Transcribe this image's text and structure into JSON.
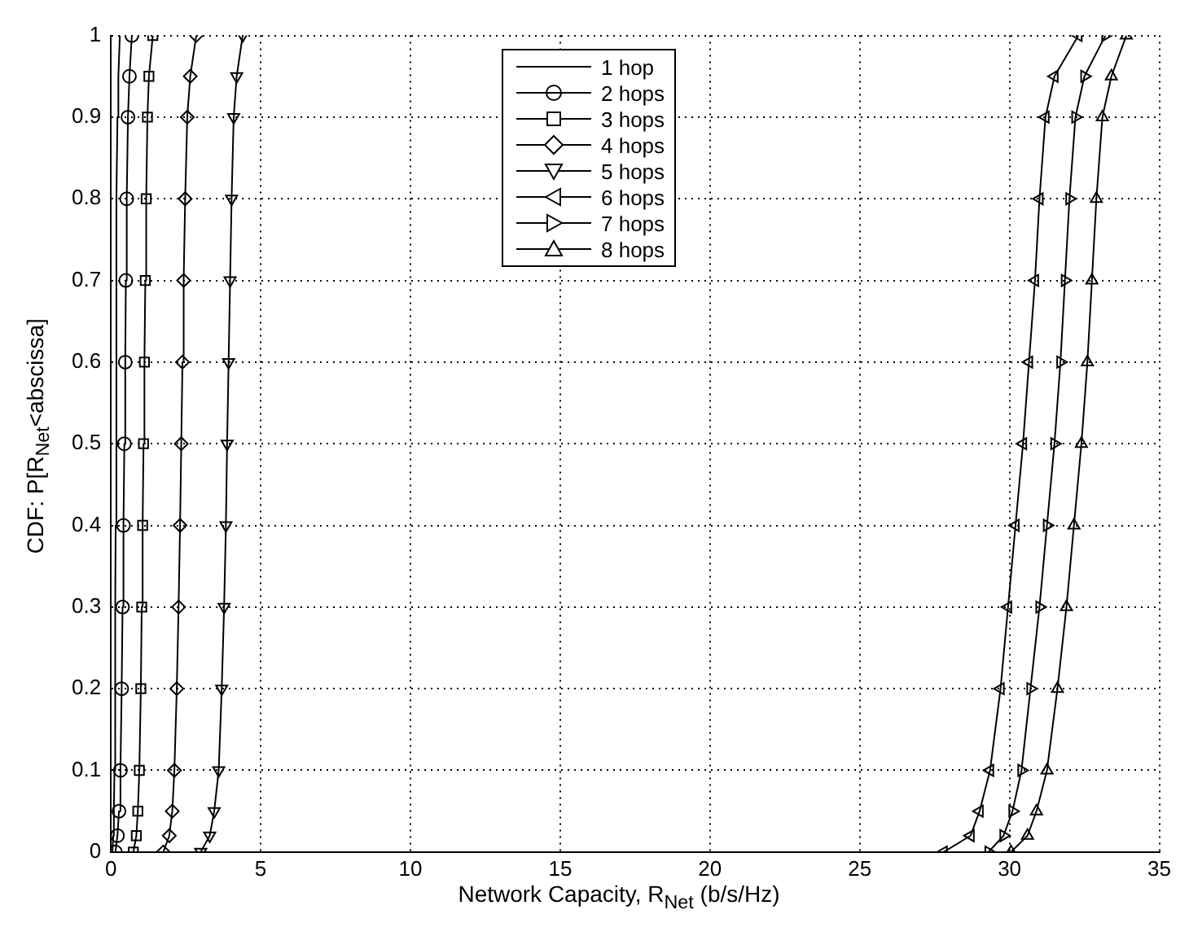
{
  "chart_data": {
    "type": "line",
    "xlabel": "Network Capacity, R$_{Net}$ (b/s/Hz)",
    "ylabel": "CDF: P[R$_{Net}$<abscissa]",
    "xlim": [
      0,
      35
    ],
    "xticks": [
      0,
      5,
      10,
      15,
      20,
      25,
      30,
      35
    ],
    "ylim": [
      0,
      1
    ],
    "yticks": [
      0,
      0.1,
      0.2,
      0.3,
      0.4,
      0.5,
      0.6,
      0.7,
      0.8,
      0.9,
      1
    ],
    "grid": true,
    "legend": "top",
    "line_style": "solid",
    "series": [
      {
        "name": "1 hop",
        "color": "#000000",
        "marker": "none",
        "x": [
          0.05,
          0.08,
          0.1,
          0.12,
          0.14,
          0.15,
          0.16,
          0.17,
          0.18,
          0.19,
          0.2,
          0.22,
          0.25,
          0.3
        ],
        "values": [
          0,
          0.02,
          0.05,
          0.1,
          0.2,
          0.3,
          0.4,
          0.5,
          0.6,
          0.7,
          0.8,
          0.9,
          0.95,
          1
        ]
      },
      {
        "name": "2 hops",
        "color": "#000000",
        "marker": "circle",
        "x": [
          0.15,
          0.22,
          0.27,
          0.32,
          0.36,
          0.39,
          0.42,
          0.45,
          0.48,
          0.5,
          0.53,
          0.57,
          0.62,
          0.7
        ],
        "values": [
          0,
          0.02,
          0.05,
          0.1,
          0.2,
          0.3,
          0.4,
          0.5,
          0.6,
          0.7,
          0.8,
          0.9,
          0.95,
          1
        ]
      },
      {
        "name": "3 hops",
        "color": "#000000",
        "marker": "square",
        "x": [
          0.75,
          0.85,
          0.9,
          0.95,
          1.0,
          1.03,
          1.06,
          1.09,
          1.12,
          1.15,
          1.18,
          1.22,
          1.27,
          1.4
        ],
        "values": [
          0,
          0.02,
          0.05,
          0.1,
          0.2,
          0.3,
          0.4,
          0.5,
          0.6,
          0.7,
          0.8,
          0.9,
          0.95,
          1
        ]
      },
      {
        "name": "4 hops",
        "color": "#000000",
        "marker": "diamond",
        "x": [
          1.75,
          1.95,
          2.05,
          2.12,
          2.2,
          2.26,
          2.31,
          2.35,
          2.39,
          2.43,
          2.48,
          2.55,
          2.65,
          2.85
        ],
        "values": [
          0,
          0.02,
          0.05,
          0.1,
          0.2,
          0.3,
          0.4,
          0.5,
          0.6,
          0.7,
          0.8,
          0.9,
          0.95,
          1
        ]
      },
      {
        "name": "5 hops",
        "color": "#000000",
        "marker": "triangle-down",
        "x": [
          3.0,
          3.3,
          3.45,
          3.6,
          3.7,
          3.78,
          3.84,
          3.88,
          3.93,
          3.98,
          4.03,
          4.1,
          4.2,
          4.4
        ],
        "values": [
          0,
          0.02,
          0.05,
          0.1,
          0.2,
          0.3,
          0.4,
          0.5,
          0.6,
          0.7,
          0.8,
          0.9,
          0.95,
          1
        ]
      },
      {
        "name": "6 hops",
        "color": "#000000",
        "marker": "triangle-left",
        "x": [
          27.8,
          28.7,
          29.0,
          29.35,
          29.7,
          29.95,
          30.2,
          30.45,
          30.65,
          30.85,
          31.0,
          31.2,
          31.5,
          32.3
        ],
        "values": [
          0,
          0.02,
          0.05,
          0.1,
          0.2,
          0.3,
          0.4,
          0.5,
          0.6,
          0.7,
          0.8,
          0.9,
          0.95,
          1
        ]
      },
      {
        "name": "7 hops",
        "color": "#000000",
        "marker": "triangle-right",
        "x": [
          29.3,
          29.8,
          30.1,
          30.4,
          30.7,
          31.0,
          31.25,
          31.5,
          31.7,
          31.85,
          32.0,
          32.2,
          32.5,
          33.2
        ],
        "values": [
          0,
          0.02,
          0.05,
          0.1,
          0.2,
          0.3,
          0.4,
          0.5,
          0.6,
          0.7,
          0.8,
          0.9,
          0.95,
          1
        ]
      },
      {
        "name": "8 hops",
        "color": "#000000",
        "marker": "triangle",
        "x": [
          30.05,
          30.6,
          30.9,
          31.25,
          31.6,
          31.9,
          32.15,
          32.4,
          32.6,
          32.75,
          32.9,
          33.1,
          33.4,
          33.9
        ],
        "values": [
          0,
          0.02,
          0.05,
          0.1,
          0.2,
          0.3,
          0.4,
          0.5,
          0.6,
          0.7,
          0.8,
          0.9,
          0.95,
          1
        ]
      }
    ]
  }
}
